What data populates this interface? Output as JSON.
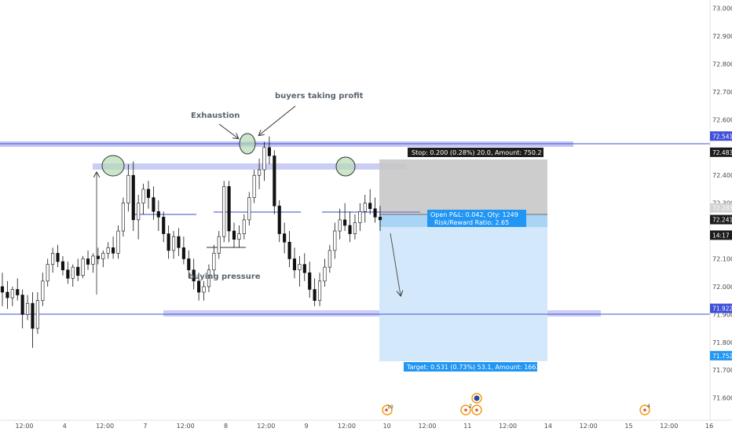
{
  "chart_data": {
    "type": "candlestick",
    "y_axis": {
      "range": [
        71.52,
        73.03
      ],
      "ticks": [
        "73.000",
        "72.900",
        "72.800",
        "72.700",
        "72.600",
        "72.400",
        "72.300",
        "72.100",
        "72.000",
        "71.900",
        "71.800",
        "71.700",
        "71.600"
      ],
      "position": "right"
    },
    "x_axis": {
      "ticks": [
        "12:00",
        "4",
        "12:00",
        "7",
        "12:00",
        "8",
        "12:00",
        "9",
        "12:00",
        "10",
        "12:00",
        "11",
        "12:00",
        "14",
        "12:00",
        "15",
        "12:00",
        "16"
      ]
    },
    "price_tags": [
      {
        "value": "72.541",
        "price": 72.541,
        "color": "#3f4fd8",
        "dark_text": false
      },
      {
        "value": "72.483",
        "price": 72.483,
        "color": "#1c1c1c",
        "dark_text": false
      },
      {
        "value": "72.283",
        "price": 72.283,
        "color": "#d4d4d4",
        "dark_text": true
      },
      {
        "value": "72.241",
        "price": 72.241,
        "color": "#1c1c1c",
        "dark_text": false
      },
      {
        "value": "14:17",
        "price": 72.185,
        "color": "#1c1c1c",
        "dark_text": false
      },
      {
        "value": "71.922",
        "price": 71.922,
        "color": "#3f4fd8",
        "dark_text": false
      },
      {
        "value": "71.752",
        "price": 71.752,
        "color": "#2196f3",
        "dark_text": false
      }
    ],
    "levels": [
      {
        "price": 72.541,
        "color": "#3f4fd8"
      },
      {
        "price": 71.922,
        "color": "#3f4fd8"
      }
    ],
    "position": {
      "entry": 72.283,
      "stop": 72.483,
      "target": 71.752,
      "stop_label": "Stop: 0.200 (0.28%) 20.0, Amount: 750.2",
      "open_label": "Open P&L: 0.042, Qty: 1249",
      "rr_label": "Risk/Reward Ratio: 2.65",
      "target_label": "Target: 0.531 (0.73%) 53.1, Amount: 1663.22"
    },
    "annotations": {
      "exhaustion": "Exhaustion",
      "buyers_taking_profit": "buyers taking profit",
      "buying_pressure": "buying pressure"
    },
    "events": [
      {
        "label": "10"
      },
      {
        "label": "2"
      },
      {
        "label": "4"
      }
    ],
    "candles": [
      [
        72.0,
        72.05,
        71.93,
        71.98
      ],
      [
        71.98,
        72.02,
        71.92,
        71.96
      ],
      [
        71.96,
        72.0,
        71.93,
        71.99
      ],
      [
        71.99,
        72.03,
        71.95,
        71.97
      ],
      [
        71.97,
        71.99,
        71.85,
        71.9
      ],
      [
        71.9,
        71.97,
        71.88,
        71.94
      ],
      [
        71.94,
        71.98,
        71.78,
        71.85
      ],
      [
        71.85,
        71.98,
        71.83,
        71.95
      ],
      [
        71.95,
        72.05,
        71.93,
        72.02
      ],
      [
        72.02,
        72.1,
        72.0,
        72.08
      ],
      [
        72.08,
        72.14,
        72.05,
        72.12
      ],
      [
        72.12,
        72.15,
        72.07,
        72.09
      ],
      [
        72.09,
        72.11,
        72.04,
        72.06
      ],
      [
        72.06,
        72.09,
        72.01,
        72.03
      ],
      [
        72.03,
        72.08,
        72.0,
        72.07
      ],
      [
        72.07,
        72.1,
        72.02,
        72.04
      ],
      [
        72.04,
        72.11,
        72.03,
        72.1
      ],
      [
        72.1,
        72.13,
        72.06,
        72.08
      ],
      [
        72.08,
        72.12,
        72.05,
        72.11
      ],
      [
        72.11,
        72.14,
        72.08,
        72.1
      ],
      [
        72.1,
        72.13,
        72.07,
        72.12
      ],
      [
        72.12,
        72.16,
        72.1,
        72.14
      ],
      [
        72.14,
        72.18,
        72.1,
        72.12
      ],
      [
        72.12,
        72.22,
        72.1,
        72.2
      ],
      [
        72.2,
        72.32,
        72.18,
        72.3
      ],
      [
        72.3,
        72.44,
        72.27,
        72.4
      ],
      [
        72.4,
        72.45,
        72.2,
        72.24
      ],
      [
        72.24,
        72.33,
        72.17,
        72.3
      ],
      [
        72.3,
        72.37,
        72.26,
        72.35
      ],
      [
        72.35,
        72.38,
        72.28,
        72.32
      ],
      [
        72.32,
        72.36,
        72.24,
        72.27
      ],
      [
        72.27,
        72.31,
        72.2,
        72.25
      ],
      [
        72.25,
        72.27,
        72.16,
        72.19
      ],
      [
        72.19,
        72.22,
        72.1,
        72.13
      ],
      [
        72.13,
        72.2,
        72.1,
        72.18
      ],
      [
        72.18,
        72.21,
        72.11,
        72.14
      ],
      [
        72.14,
        72.18,
        72.08,
        72.1
      ],
      [
        72.1,
        72.13,
        72.03,
        72.06
      ],
      [
        72.06,
        72.1,
        71.99,
        72.02
      ],
      [
        72.02,
        72.05,
        71.95,
        71.98
      ],
      [
        71.98,
        72.02,
        71.95,
        72.0
      ],
      [
        72.0,
        72.08,
        71.98,
        72.06
      ],
      [
        72.06,
        72.15,
        72.04,
        72.12
      ],
      [
        72.12,
        72.2,
        72.1,
        72.18
      ],
      [
        72.18,
        72.38,
        72.16,
        72.36
      ],
      [
        72.36,
        72.38,
        72.16,
        72.2
      ],
      [
        72.2,
        72.23,
        72.14,
        72.17
      ],
      [
        72.17,
        72.22,
        72.14,
        72.19
      ],
      [
        72.19,
        72.26,
        72.17,
        72.24
      ],
      [
        72.24,
        72.34,
        72.22,
        72.32
      ],
      [
        72.32,
        72.42,
        72.3,
        72.4
      ],
      [
        72.4,
        72.46,
        72.35,
        72.42
      ],
      [
        72.42,
        72.52,
        72.38,
        72.5
      ],
      [
        72.5,
        72.54,
        72.44,
        72.47
      ],
      [
        72.47,
        72.49,
        72.26,
        72.29
      ],
      [
        72.29,
        72.31,
        72.16,
        72.19
      ],
      [
        72.19,
        72.23,
        72.12,
        72.16
      ],
      [
        72.16,
        72.2,
        72.07,
        72.1
      ],
      [
        72.1,
        72.14,
        72.03,
        72.06
      ],
      [
        72.06,
        72.11,
        72.0,
        72.08
      ],
      [
        72.08,
        72.12,
        72.02,
        72.05
      ],
      [
        72.05,
        72.09,
        71.96,
        71.99
      ],
      [
        71.99,
        72.03,
        71.93,
        71.95
      ],
      [
        71.95,
        72.05,
        71.93,
        72.02
      ],
      [
        72.02,
        72.1,
        72.0,
        72.07
      ],
      [
        72.07,
        72.15,
        72.05,
        72.13
      ],
      [
        72.13,
        72.23,
        72.1,
        72.2
      ],
      [
        72.2,
        72.28,
        72.17,
        72.24
      ],
      [
        72.24,
        72.3,
        72.2,
        72.22
      ],
      [
        72.22,
        72.27,
        72.16,
        72.19
      ],
      [
        72.19,
        72.26,
        72.17,
        72.23
      ],
      [
        72.23,
        72.3,
        72.2,
        72.27
      ],
      [
        72.27,
        72.33,
        72.23,
        72.3
      ],
      [
        72.3,
        72.35,
        72.26,
        72.28
      ],
      [
        72.28,
        72.32,
        72.23,
        72.25
      ],
      [
        72.25,
        72.29,
        72.2,
        72.24
      ]
    ]
  }
}
